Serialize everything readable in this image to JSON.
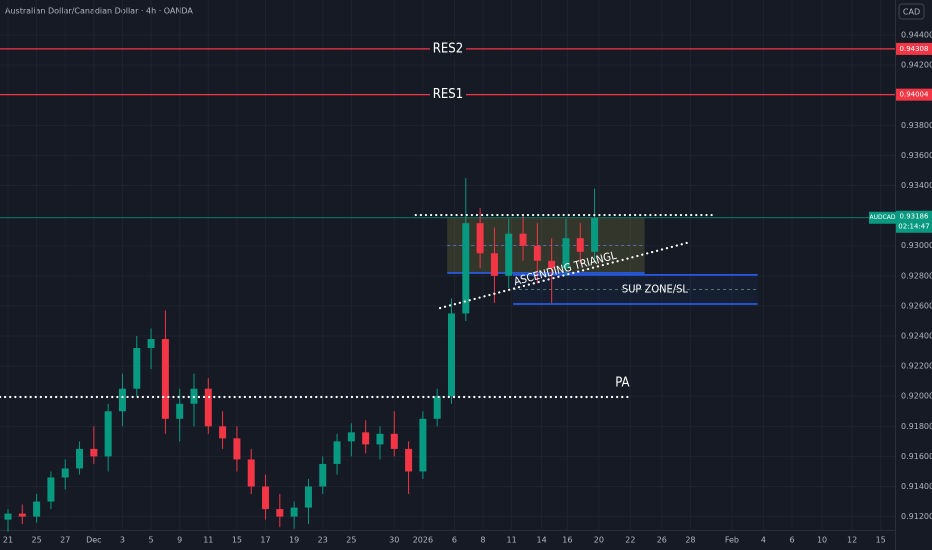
{
  "chart_data": {
    "type": "candlestick",
    "title": "Australian Dollar/Canadian Dollar · 4h · OANDA",
    "currency": "CAD",
    "symbol": "AUDCAD",
    "last_price": 0.93186,
    "countdown": "02:14:47",
    "up_color": "#089981",
    "down_color": "#f23645",
    "xlim": [
      -0.56,
      62.0
    ],
    "ylim": [
      0.91111,
      0.94633
    ],
    "xticks": [
      {
        "value": 0,
        "label": "21"
      },
      {
        "value": 2,
        "label": "25"
      },
      {
        "value": 4,
        "label": "27"
      },
      {
        "value": 6,
        "label": "Dec"
      },
      {
        "value": 8,
        "label": "3"
      },
      {
        "value": 10,
        "label": "5"
      },
      {
        "value": 12,
        "label": "9"
      },
      {
        "value": 14,
        "label": "11"
      },
      {
        "value": 16,
        "label": "15"
      },
      {
        "value": 18,
        "label": "17"
      },
      {
        "value": 20,
        "label": "19"
      },
      {
        "value": 22,
        "label": "23"
      },
      {
        "value": 24,
        "label": "25"
      },
      {
        "value": 27,
        "label": "30"
      },
      {
        "value": 29,
        "label": "2026"
      },
      {
        "value": 31.2,
        "label": "6"
      },
      {
        "value": 33.2,
        "label": "8"
      },
      {
        "value": 35.2,
        "label": "11"
      },
      {
        "value": 37.3,
        "label": "14"
      },
      {
        "value": 39.1,
        "label": "16"
      },
      {
        "value": 41.3,
        "label": "20"
      },
      {
        "value": 43.5,
        "label": "22"
      },
      {
        "value": 45.7,
        "label": "26"
      },
      {
        "value": 47.7,
        "label": "28"
      },
      {
        "value": 50.6,
        "label": "Feb"
      },
      {
        "value": 52.8,
        "label": "4"
      },
      {
        "value": 54.8,
        "label": "6"
      },
      {
        "value": 56.9,
        "label": "10"
      },
      {
        "value": 59,
        "label": "12"
      },
      {
        "value": 61,
        "label": "15"
      }
    ],
    "yticks": [
      {
        "value": 0.944,
        "label": "0.94400"
      },
      {
        "value": 0.942,
        "label": "0.94200"
      },
      {
        "value": 0.938,
        "label": "0.93800"
      },
      {
        "value": 0.936,
        "label": "0.93600"
      },
      {
        "value": 0.934,
        "label": "0.93400"
      },
      {
        "value": 0.93,
        "label": "0.93000"
      },
      {
        "value": 0.928,
        "label": "0.92800"
      },
      {
        "value": 0.926,
        "label": "0.92600"
      },
      {
        "value": 0.924,
        "label": "0.92400"
      },
      {
        "value": 0.922,
        "label": "0.92200"
      },
      {
        "value": 0.92,
        "label": "0.92000"
      },
      {
        "value": 0.918,
        "label": "0.91800"
      },
      {
        "value": 0.916,
        "label": "0.91600"
      },
      {
        "value": 0.914,
        "label": "0.91400"
      },
      {
        "value": 0.912,
        "label": "0.91200"
      }
    ],
    "x": [
      0,
      1,
      2,
      3,
      4,
      5,
      6,
      7,
      8,
      9,
      10,
      11,
      12,
      13,
      14,
      15,
      16,
      17,
      18,
      19,
      20,
      21,
      22,
      23,
      24,
      25,
      26,
      27,
      28,
      29,
      30,
      31,
      32,
      33,
      34,
      35,
      36,
      37,
      38,
      39,
      40,
      41
    ],
    "open": [
      0.9118,
      0.9122,
      0.912,
      0.913,
      0.9146,
      0.9152,
      0.9165,
      0.916,
      0.919,
      0.9205,
      0.9232,
      0.9238,
      0.9185,
      0.9195,
      0.9205,
      0.918,
      0.9172,
      0.9158,
      0.914,
      0.9125,
      0.912,
      0.9126,
      0.914,
      0.9155,
      0.917,
      0.9176,
      0.9168,
      0.9175,
      0.9165,
      0.915,
      0.9185,
      0.92,
      0.9255,
      0.9315,
      0.9295,
      0.928,
      0.9308,
      0.93,
      0.929,
      0.9285,
      0.9305,
      0.9296
    ],
    "high": [
      0.9125,
      0.9128,
      0.9135,
      0.915,
      0.9158,
      0.917,
      0.918,
      0.9195,
      0.9215,
      0.924,
      0.9245,
      0.9257,
      0.9205,
      0.9215,
      0.9212,
      0.919,
      0.918,
      0.9165,
      0.9148,
      0.9135,
      0.913,
      0.9145,
      0.916,
      0.9175,
      0.9182,
      0.9184,
      0.918,
      0.919,
      0.917,
      0.919,
      0.9205,
      0.9265,
      0.9345,
      0.9325,
      0.9312,
      0.9318,
      0.932,
      0.9315,
      0.9305,
      0.9318,
      0.9315,
      0.9338
    ],
    "low": [
      0.911,
      0.9115,
      0.9116,
      0.9125,
      0.9138,
      0.9148,
      0.9155,
      0.915,
      0.918,
      0.92,
      0.9218,
      0.9175,
      0.917,
      0.918,
      0.9175,
      0.9165,
      0.915,
      0.9135,
      0.9118,
      0.9113,
      0.9112,
      0.9115,
      0.9135,
      0.9148,
      0.916,
      0.9162,
      0.9158,
      0.916,
      0.9135,
      0.9145,
      0.918,
      0.9195,
      0.925,
      0.9285,
      0.9262,
      0.9272,
      0.929,
      0.9275,
      0.9262,
      0.928,
      0.9288,
      0.929
    ],
    "close": [
      0.9122,
      0.912,
      0.913,
      0.9146,
      0.9152,
      0.9165,
      0.916,
      0.919,
      0.9205,
      0.9232,
      0.9238,
      0.9185,
      0.9195,
      0.9205,
      0.918,
      0.9172,
      0.9158,
      0.914,
      0.9125,
      0.912,
      0.9126,
      0.914,
      0.9155,
      0.917,
      0.9176,
      0.9168,
      0.9175,
      0.9165,
      0.915,
      0.9185,
      0.92,
      0.9255,
      0.9315,
      0.9295,
      0.928,
      0.9308,
      0.93,
      0.929,
      0.9285,
      0.9305,
      0.9296,
      0.93186
    ],
    "levels": [
      {
        "name": "RES2",
        "value": 0.94308,
        "color": "#f23645"
      },
      {
        "name": "RES1",
        "value": 0.94004,
        "color": "#f23645"
      }
    ],
    "dotted_lines": [
      {
        "x": [
          28.5,
          49.2
        ],
        "y": [
          0.93204,
          0.93204
        ],
        "color": "#ffffff"
      },
      {
        "label": "ASCENDING TRIANGL",
        "x": [
          30.2,
          47.7
        ],
        "y": [
          0.92586,
          0.93025
        ],
        "color": "#ffffff"
      },
      {
        "label": "PA",
        "x": [
          -0.56,
          43.5
        ],
        "y": [
          0.91995,
          0.91995
        ],
        "color": "#ffffff"
      }
    ],
    "zones": [
      {
        "x": [
          30.7,
          44.5
        ],
        "y": [
          0.92819,
          0.93184
        ],
        "color": "#2962ff",
        "fill": "rgba(140,140,60,0.25)"
      },
      {
        "label": "SUP ZONE/SL",
        "x": [
          35.3,
          52.4
        ],
        "y": [
          0.92613,
          0.92806
        ],
        "color": "#2962ff",
        "fill": "rgba(41,98,255,0.06)"
      }
    ]
  }
}
